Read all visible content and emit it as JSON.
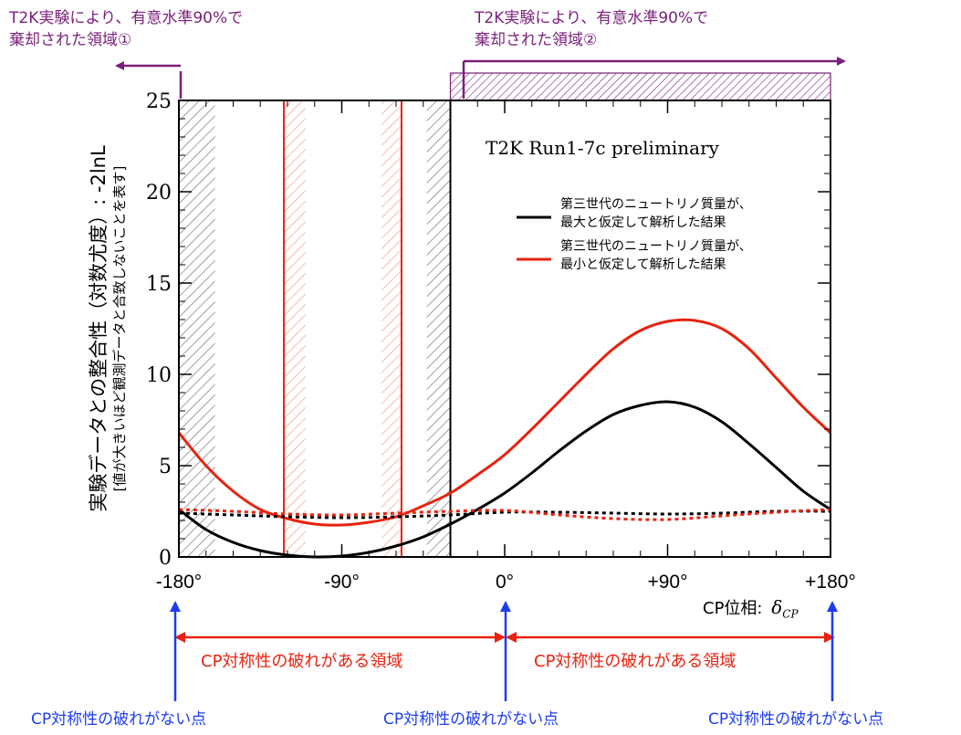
{
  "top_annotations": {
    "region1": {
      "line1": "T2K実験により、有意水準90%で",
      "line2": "棄却された領域①"
    },
    "region2": {
      "line1": "T2K実験により、有意水準90%で",
      "line2": "棄却された領域②"
    }
  },
  "bottom_annotations": {
    "violation_left": "CP対称性の破れがある領域",
    "violation_right": "CP対称性の破れがある領域",
    "no_violation": [
      "CP対称性の破れがない点",
      "CP対称性の破れがない点",
      "CP対称性の破れがない点"
    ]
  },
  "colors": {
    "purple": "#7a1f7a",
    "black_curve": "#000000",
    "red_curve": "#e8220f",
    "red_annotation": "#e8220f",
    "blue_annotation": "#1d3cf0"
  },
  "chart_data": {
    "type": "line",
    "title": "T2K Run1-7c preliminary",
    "xlabel": "CP位相:",
    "xlabel_symbol": "δ",
    "xlabel_subscript": "CP",
    "ylabel": "実験データとの整合性（対数尤度）: -2lnL",
    "ylabel_sub": "[値が大きいほど観測データと合致しないことを表す]",
    "xlim": [
      -180,
      180
    ],
    "ylim": [
      0,
      25
    ],
    "x_ticks": [
      -180,
      -90,
      0,
      90,
      180
    ],
    "x_tick_labels": [
      "-180°",
      "-90°",
      "0°",
      "+90°",
      "+180°"
    ],
    "y_ticks": [
      0,
      5,
      10,
      15,
      20,
      25
    ],
    "y_tick_labels": [
      "0",
      "5",
      "10",
      "15",
      "20",
      "25"
    ],
    "legend": [
      {
        "line1": "第三世代のニュートリノ質量が、",
        "line2": "最大と仮定して解析した結果",
        "color": "#000000"
      },
      {
        "line1": "第三世代のニュートリノ質量が、",
        "line2": "最小と仮定して解析した結果",
        "color": "#e8220f"
      }
    ],
    "series": [
      {
        "color": "#000000",
        "style": "solid",
        "x": [
          -180,
          -165,
          -150,
          -135,
          -120,
          -105,
          -90,
          -75,
          -60,
          -45,
          -30,
          -15,
          0,
          15,
          30,
          45,
          60,
          75,
          90,
          105,
          120,
          135,
          150,
          165,
          180
        ],
        "y": [
          2.6,
          1.5,
          0.8,
          0.35,
          0.1,
          0.0,
          0.05,
          0.25,
          0.6,
          1.1,
          1.8,
          2.6,
          3.5,
          4.6,
          5.8,
          6.9,
          7.8,
          8.3,
          8.5,
          8.2,
          7.4,
          6.2,
          4.9,
          3.6,
          2.6
        ]
      },
      {
        "color": "#e8220f",
        "style": "solid",
        "x": [
          -180,
          -165,
          -150,
          -135,
          -120,
          -105,
          -90,
          -75,
          -60,
          -45,
          -30,
          -15,
          0,
          15,
          30,
          45,
          60,
          75,
          90,
          105,
          120,
          135,
          150,
          165,
          180
        ],
        "y": [
          6.8,
          5.0,
          3.6,
          2.6,
          2.1,
          1.8,
          1.75,
          1.9,
          2.2,
          2.8,
          3.5,
          4.5,
          5.6,
          7.0,
          8.5,
          10.0,
          11.4,
          12.4,
          12.9,
          12.95,
          12.5,
          11.4,
          9.8,
          8.2,
          6.8
        ]
      },
      {
        "color": "#000000",
        "style": "dotted",
        "x": [
          -180,
          -150,
          -120,
          -90,
          -60,
          -30,
          0,
          30,
          60,
          90,
          120,
          150,
          180
        ],
        "y": [
          2.4,
          2.3,
          2.2,
          2.15,
          2.2,
          2.3,
          2.45,
          2.45,
          2.4,
          2.35,
          2.4,
          2.5,
          2.5
        ]
      },
      {
        "color": "#e8220f",
        "style": "dotted",
        "x": [
          -180,
          -150,
          -120,
          -90,
          -60,
          -30,
          0,
          30,
          60,
          90,
          120,
          150,
          180
        ],
        "y": [
          2.6,
          2.5,
          2.35,
          2.3,
          2.4,
          2.5,
          2.55,
          2.3,
          2.1,
          2.05,
          2.25,
          2.45,
          2.6
        ]
      }
    ],
    "excluded_regions": [
      {
        "x": [
          -180,
          -160
        ],
        "color": "#000000"
      },
      {
        "x": [
          -43,
          -30
        ],
        "color": "#000000"
      },
      {
        "x": [
          -30,
          180
        ],
        "color": "#7a1f7a"
      },
      {
        "x": [
          -122,
          -110
        ],
        "color": "#e8220f"
      },
      {
        "x": [
          -68,
          -57
        ],
        "color": "#e8220f"
      }
    ],
    "boundary_lines": [
      {
        "x": -30,
        "color": "#000000"
      },
      {
        "x": -122,
        "color": "#e8220f"
      },
      {
        "x": -57,
        "color": "#e8220f"
      }
    ]
  }
}
